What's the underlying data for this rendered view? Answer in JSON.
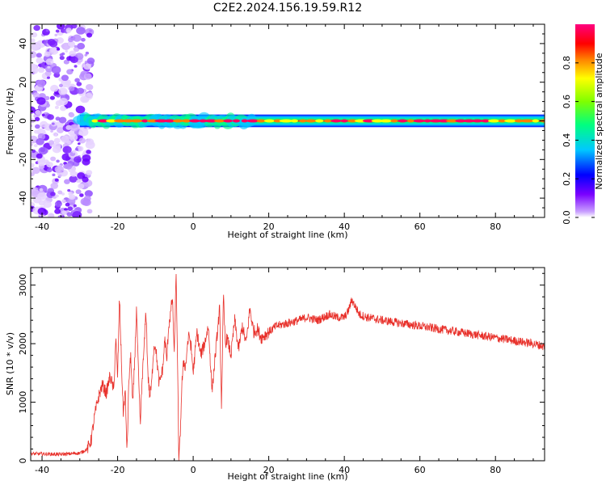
{
  "title": "C2E2.2024.156.19.59.R12",
  "colorbar": {
    "label": "Normalized spectral amplitude",
    "ticks": [
      "0.0",
      "0.2",
      "0.4",
      "0.6",
      "0.8"
    ],
    "range": [
      0,
      1
    ]
  },
  "chart_data": [
    {
      "type": "heatmap",
      "title": "C2E2.2024.156.19.59.R12",
      "xlabel": "Height of straight line (km)",
      "ylabel": "Frequency (Hz)",
      "xlim": [
        -43,
        93
      ],
      "ylim": [
        -50,
        50
      ],
      "xticks": [
        -40,
        -20,
        0,
        20,
        40,
        60,
        80
      ],
      "yticks": [
        -40,
        -20,
        0,
        20,
        40
      ],
      "noise_region_x": [
        -43,
        -28
      ],
      "signal_band_hz": [
        -2,
        2
      ],
      "signal_band_start_x": -30,
      "colormap": "rainbow (violet=0 to red/pink=1)"
    },
    {
      "type": "line",
      "xlabel": "Height of straight line (km)",
      "ylabel": "SNR (10 * v/v)",
      "xlim": [
        -43,
        93
      ],
      "ylim": [
        0,
        3300
      ],
      "xticks": [
        -40,
        -20,
        0,
        20,
        40,
        60,
        80
      ],
      "yticks": [
        0,
        1000,
        2000,
        3000
      ],
      "color": "#e8302a",
      "x": [
        -43,
        -35,
        -30,
        -28,
        -27,
        -26,
        -25,
        -24,
        -23,
        -22,
        -21,
        -20.5,
        -20,
        -19.5,
        -19,
        -18.5,
        -18,
        -17.5,
        -17,
        -16.5,
        -16,
        -15.5,
        -15,
        -14.5,
        -14,
        -13.5,
        -13,
        -12.5,
        -12,
        -11.5,
        -11,
        -10.5,
        -10,
        -9,
        -8,
        -7.5,
        -7,
        -6.5,
        -6,
        -5.5,
        -5,
        -4.5,
        -4,
        -3.8,
        -3.5,
        -3.2,
        -3,
        -2.5,
        -2,
        -1.5,
        -1,
        -0.5,
        0,
        1,
        2,
        3,
        4,
        5,
        6,
        7,
        7.5,
        8,
        8.5,
        9,
        10,
        11,
        12,
        13,
        14,
        15,
        16,
        17,
        18,
        20,
        22,
        25,
        28,
        30,
        33,
        36,
        38,
        40,
        41,
        42,
        44,
        46,
        50,
        55,
        60,
        65,
        70,
        75,
        80,
        85,
        90,
        93
      ],
      "y": [
        120,
        110,
        130,
        200,
        350,
        800,
        1100,
        1300,
        1150,
        1450,
        1200,
        2100,
        1400,
        2800,
        1700,
        800,
        1200,
        150,
        1400,
        1800,
        900,
        1700,
        2600,
        1500,
        600,
        1400,
        1900,
        2600,
        1500,
        1100,
        1300,
        1900,
        2000,
        1300,
        1600,
        2100,
        1700,
        2300,
        2500,
        2800,
        1800,
        3250,
        1000,
        0,
        300,
        900,
        1300,
        1700,
        1600,
        2000,
        2150,
        1900,
        1500,
        2200,
        1800,
        2000,
        2300,
        1200,
        1900,
        2600,
        900,
        2800,
        2000,
        2100,
        1800,
        2400,
        1900,
        2300,
        2000,
        2600,
        2200,
        2250,
        2100,
        2200,
        2300,
        2350,
        2400,
        2450,
        2400,
        2500,
        2450,
        2450,
        2550,
        2750,
        2500,
        2450,
        2400,
        2350,
        2300,
        2250,
        2200,
        2150,
        2100,
        2050,
        2000,
        1950
      ]
    }
  ]
}
